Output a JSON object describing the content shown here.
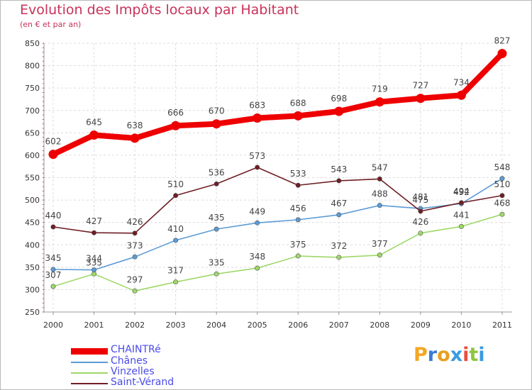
{
  "title": "Evolution des Impôts locaux par Habitant",
  "subtitle": "(en € et par an)",
  "logo": {
    "letters": [
      {
        "char": "P",
        "color": "#f5a623"
      },
      {
        "char": "r",
        "color": "#3a7bd5"
      },
      {
        "char": "o",
        "color": "#e8a020"
      },
      {
        "char": "x",
        "color": "#3a9ae0"
      },
      {
        "char": "i",
        "color": "#e85040"
      },
      {
        "char": "t",
        "color": "#8cc63f"
      },
      {
        "char": "i",
        "color": "#3a9ae0"
      }
    ]
  },
  "chart_data": {
    "type": "line",
    "title": "Evolution des Impôts locaux par Habitant",
    "subtitle": "(en € et par an)",
    "categories": [
      "2000",
      "2001",
      "2002",
      "2003",
      "2004",
      "2005",
      "2006",
      "2007",
      "2008",
      "2009",
      "2010",
      "2011"
    ],
    "ylim": [
      250,
      850
    ],
    "yticks": [
      250,
      300,
      350,
      400,
      450,
      500,
      550,
      600,
      650,
      700,
      750,
      800,
      850
    ],
    "grid": true,
    "legend_position": "bottom-left",
    "series": [
      {
        "name": "CHAINTRé",
        "color": "#ee0000",
        "values": [
          602,
          645,
          638,
          666,
          670,
          683,
          688,
          698,
          719,
          727,
          734,
          827
        ]
      },
      {
        "name": "Chânes",
        "color": "#5b9bd5",
        "values": [
          345,
          344,
          373,
          410,
          435,
          449,
          456,
          467,
          488,
          481,
          492,
          548
        ]
      },
      {
        "name": "Vinzelles",
        "color": "#9ed868",
        "values": [
          307,
          335,
          297,
          317,
          335,
          348,
          375,
          372,
          377,
          426,
          441,
          468
        ]
      },
      {
        "name": "Saint-Vérand",
        "color": "#6e1e24",
        "values": [
          440,
          427,
          426,
          510,
          536,
          573,
          533,
          543,
          547,
          475,
          494,
          510
        ]
      }
    ]
  }
}
